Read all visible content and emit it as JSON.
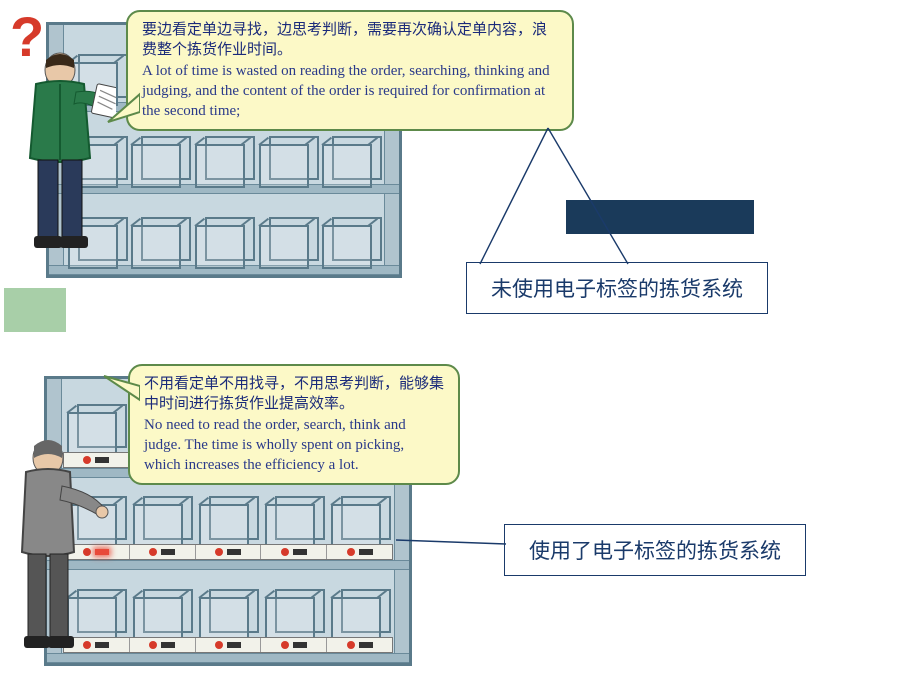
{
  "colors": {
    "bubble_fill": "#fcf9c7",
    "bubble_border": "#5d8a4a",
    "bubble_text": "#2a3a8a",
    "caption_border": "#1a3a6a",
    "caption_text": "#1a3a6a",
    "shelf_stroke": "#5a7a8a",
    "shelf_fill": "#c8d8e0",
    "dark_bar": "#1a3a5a",
    "green_block": "#a8cfa8",
    "question_mark": "#d63a2a",
    "tag_lit": "#e84a3a",
    "background": "#ffffff"
  },
  "top": {
    "bubble_zh": "要边看定单边寻找，边思考判断，需要再次确认定单内容，浪费整个拣货作业时间。",
    "bubble_en": "A lot of time is wasted on reading the order, searching, thinking and judging, and the content of the order is required for confirmation at the second time;",
    "caption": "未使用电子标签的拣货系统",
    "question_mark": "?",
    "shelf": {
      "rows": 3,
      "cols": 5
    }
  },
  "bottom": {
    "bubble_zh": "不用看定单不用找寻，不用思考判断，能够集中时间进行拣货作业提高效率。",
    "bubble_en": "No need to read the order, search, think and judge. The time is wholly spent on picking, which increases the efficiency a lot.",
    "caption": "使用了电子标签的拣货系统",
    "shelf": {
      "rows": 3,
      "cols": 5,
      "lit_row": 1,
      "lit_col": 0
    }
  }
}
